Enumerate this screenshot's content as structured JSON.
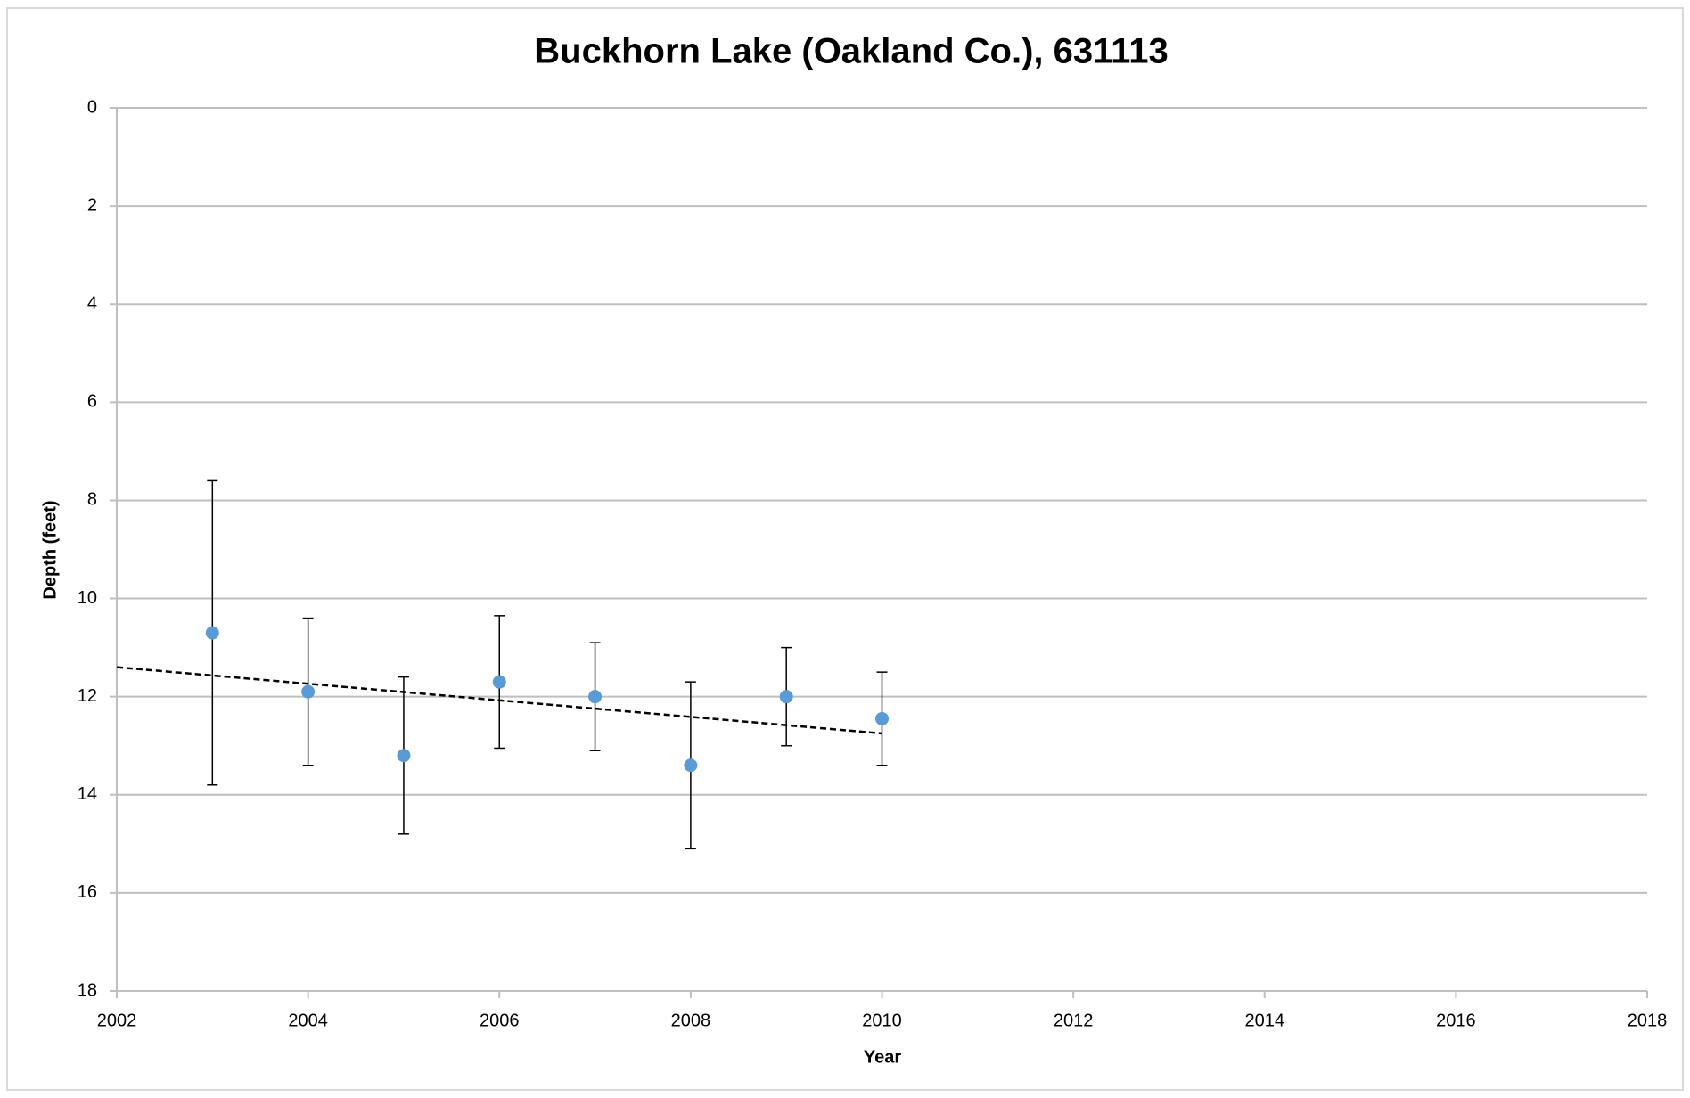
{
  "chart_data": {
    "type": "scatter",
    "title": "Buckhorn Lake (Oakland Co.), 631113",
    "x_label": "Year",
    "y_label": "Depth (feet)",
    "x": [
      2003,
      2004,
      2005,
      2006,
      2007,
      2008,
      2009,
      2010
    ],
    "values": [
      10.7,
      11.9,
      13.2,
      11.7,
      12.0,
      13.4,
      12.0,
      12.45
    ],
    "errors": [
      3.1,
      1.5,
      1.6,
      1.35,
      1.1,
      1.7,
      1.0,
      0.95
    ],
    "color": "#5b9bd5",
    "trendline": {
      "x": [
        2002,
        2010
      ],
      "values": [
        11.4,
        12.75
      ],
      "color": "#000000"
    },
    "xlim": [
      2002,
      2018
    ],
    "xticks": [
      2002,
      2004,
      2006,
      2008,
      2010,
      2012,
      2014,
      2016,
      2018
    ],
    "ylim": [
      0,
      18
    ],
    "yticks": [
      0,
      2,
      4,
      6,
      8,
      10,
      12,
      14,
      16,
      18
    ],
    "y_inverted": true,
    "grid": true
  }
}
